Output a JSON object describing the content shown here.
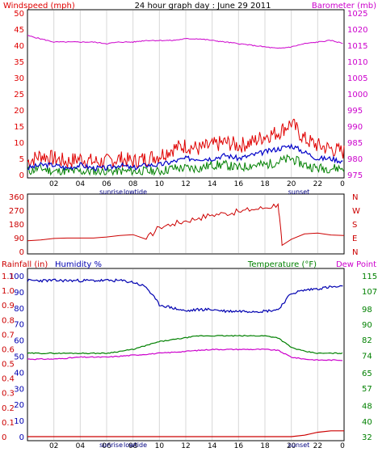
{
  "header": {
    "left_label": "Windspeed (mph)",
    "title": "24 hour graph day : June 29 2011",
    "right_label": "Barometer (mb)"
  },
  "x_ticks": [
    "02",
    "04",
    "06",
    "08",
    "10",
    "12",
    "14",
    "16",
    "18",
    "20",
    "22",
    "0"
  ],
  "markers": {
    "sunrise": "sunrise",
    "lowtide": "lowtide",
    "sunset": "sunset"
  },
  "colors": {
    "wind": "#e00000",
    "wind_avg": "#0000c8",
    "wind_low": "#008000",
    "barometer": "#cc00cc",
    "direction": "#cc0000",
    "humidity": "#0000b0",
    "temperature": "#008000",
    "dewpoint": "#cc00cc",
    "rainfall": "#cc0000",
    "grid": "#d8d8d8"
  },
  "chart_data": [
    {
      "type": "line",
      "title": "24 hour graph day : June 29 2011",
      "ylabel": "Windspeed (mph)",
      "ylim": [
        0,
        50
      ],
      "y_ticks": [
        0,
        5,
        10,
        15,
        20,
        25,
        30,
        35,
        40,
        45,
        50
      ],
      "y2label": "Barometer (mb)",
      "y2lim": [
        975,
        1025
      ],
      "y2_ticks": [
        975,
        980,
        985,
        990,
        995,
        1000,
        1005,
        1010,
        1015,
        1020,
        1025
      ],
      "x": [
        0,
        1,
        2,
        3,
        4,
        5,
        6,
        7,
        8,
        9,
        10,
        11,
        12,
        13,
        14,
        15,
        16,
        17,
        18,
        19,
        20,
        21,
        22,
        23,
        24
      ],
      "series": [
        {
          "key": "gust",
          "axis": "left",
          "values": [
            4,
            6,
            5,
            4,
            5,
            4,
            4,
            5,
            4,
            5,
            6,
            8,
            9,
            8,
            9,
            10,
            9,
            10,
            12,
            13,
            16,
            11,
            9,
            8,
            7
          ]
        },
        {
          "key": "avg",
          "axis": "left",
          "values": [
            2,
            3,
            3,
            2,
            3,
            2,
            2,
            3,
            2,
            3,
            3,
            4,
            5,
            5,
            5,
            6,
            5,
            6,
            7,
            8,
            9,
            7,
            5,
            5,
            4
          ]
        },
        {
          "key": "low",
          "axis": "left",
          "values": [
            1,
            2,
            1,
            1,
            1,
            1,
            1,
            1,
            1,
            1,
            1,
            2,
            2,
            2,
            3,
            3,
            2,
            3,
            3,
            4,
            5,
            3,
            2,
            2,
            2
          ]
        },
        {
          "key": "baro",
          "axis": "right",
          "values": [
            1018,
            1017,
            1016,
            1016,
            1016,
            1016,
            1015.5,
            1016,
            1016,
            1016.5,
            1016.5,
            1016.5,
            1017,
            1017,
            1016.5,
            1016,
            1015.5,
            1015,
            1014.5,
            1014,
            1014.5,
            1015.5,
            1016,
            1016.5,
            1015.5
          ]
        }
      ]
    },
    {
      "type": "line",
      "ylim": [
        0,
        360
      ],
      "y_ticks": [
        0,
        90,
        180,
        270,
        360
      ],
      "y2_ticks": [
        "N",
        "E",
        "S",
        "W",
        "N"
      ],
      "x": [
        0,
        1,
        2,
        3,
        4,
        5,
        6,
        7,
        8,
        9,
        10,
        11,
        12,
        13,
        14,
        15,
        16,
        17,
        18,
        19,
        19.3,
        20,
        21,
        22,
        23,
        24
      ],
      "series": [
        {
          "key": "direction",
          "values": [
            70,
            75,
            85,
            88,
            88,
            88,
            95,
            105,
            110,
            80,
            160,
            180,
            200,
            220,
            240,
            250,
            260,
            275,
            285,
            310,
            40,
            80,
            115,
            120,
            108,
            105
          ]
        }
      ]
    },
    {
      "type": "line",
      "ylabel": "Rainfall (in)",
      "y_ticks_rain": [
        0,
        0.1,
        0.2,
        0.3,
        0.4,
        0.5,
        0.6,
        0.7,
        0.8,
        0.9,
        1.0,
        1.1
      ],
      "y_ticks_rain_labels": [
        "0",
        "0.1",
        "0.2",
        "0.3",
        "0.4",
        "0.5",
        "0.6",
        "0.7",
        "0.8",
        "0.9",
        "1.0",
        "1.1"
      ],
      "humidity_label": "Humidity %",
      "humidity_lim": [
        0,
        100
      ],
      "humidity_ticks": [
        0,
        10,
        20,
        30,
        40,
        50,
        60,
        70,
        80,
        90,
        100
      ],
      "y2label": "Temperature (°F)",
      "y2label_b": "Dew Point",
      "y2lim": [
        32,
        115
      ],
      "y2_ticks": [
        32,
        40,
        48,
        57,
        65,
        74,
        82,
        90,
        98,
        107,
        115
      ],
      "x": [
        0,
        1,
        2,
        3,
        4,
        5,
        6,
        7,
        8,
        9,
        10,
        11,
        12,
        13,
        14,
        15,
        16,
        17,
        18,
        19,
        20,
        21,
        22,
        23,
        24
      ],
      "series": [
        {
          "key": "humidity",
          "axis": "humidity",
          "values": [
            97,
            97,
            97,
            97,
            97,
            97,
            97,
            97,
            96,
            93,
            82,
            80,
            78,
            79,
            79,
            78,
            78,
            78,
            78,
            79,
            89,
            91,
            92,
            93,
            93
          ]
        },
        {
          "key": "temperature",
          "axis": "right",
          "values": [
            75,
            75,
            75,
            75,
            75,
            75,
            75,
            76,
            77,
            79,
            81,
            82,
            83,
            84,
            84,
            84,
            84,
            84,
            84,
            83,
            78,
            76,
            75,
            75,
            75
          ]
        },
        {
          "key": "dewpoint",
          "axis": "right",
          "values": [
            72,
            72,
            72,
            72.5,
            73,
            73,
            73,
            73.5,
            74,
            74.5,
            75,
            75.5,
            76,
            76.5,
            77,
            77,
            77,
            77,
            77,
            76.5,
            73,
            72,
            71.5,
            71.5,
            71.5
          ]
        },
        {
          "key": "rainfall",
          "axis": "rain",
          "values": [
            0,
            0,
            0,
            0,
            0,
            0,
            0,
            0,
            0,
            0,
            0,
            0,
            0,
            0,
            0,
            0,
            0,
            0,
            0,
            0,
            0,
            0.01,
            0.03,
            0.04,
            0.04
          ]
        }
      ]
    }
  ]
}
